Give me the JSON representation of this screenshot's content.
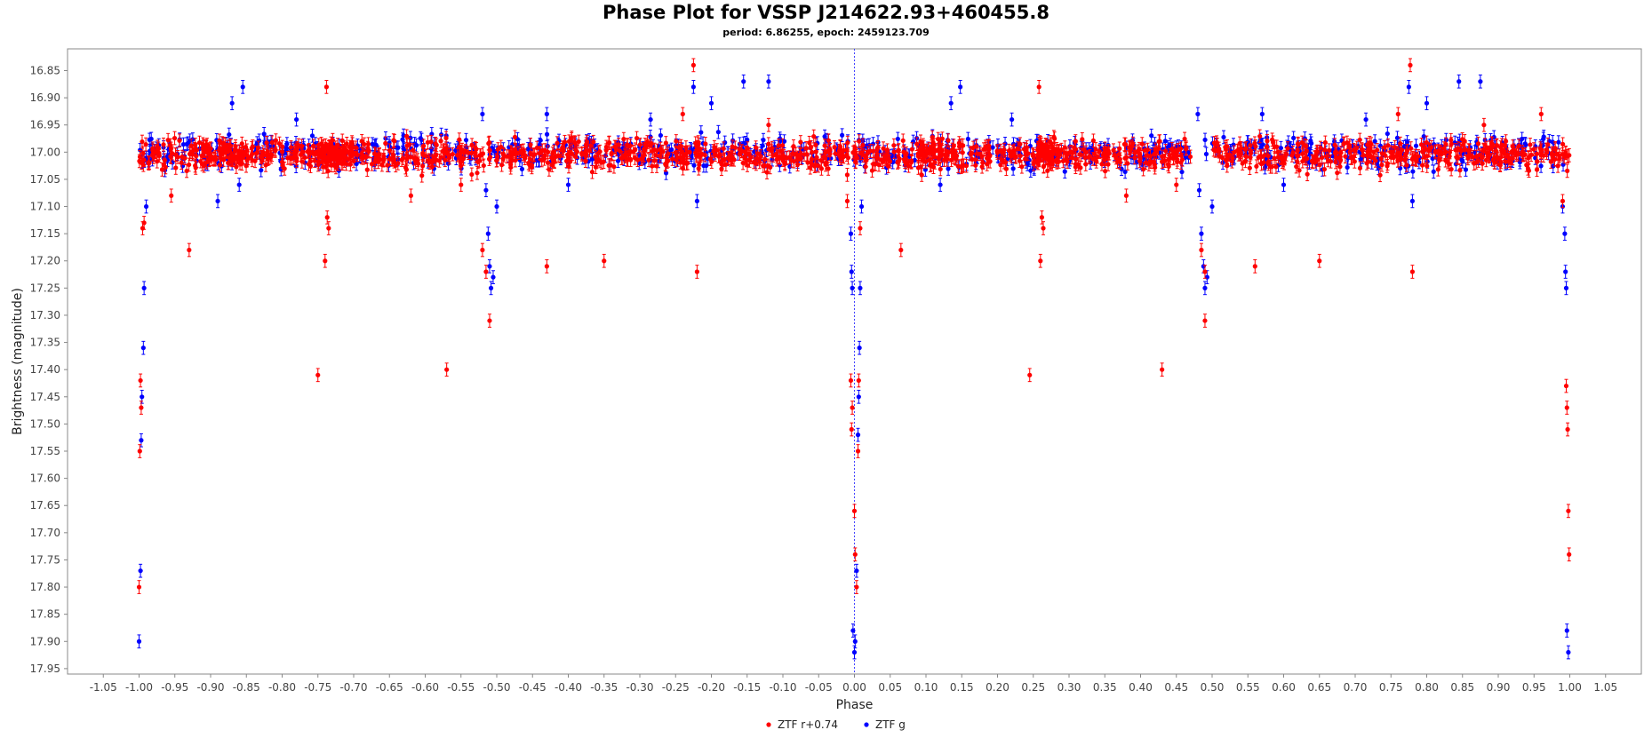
{
  "chart_data": {
    "type": "scatter",
    "title": "Phase Plot for VSSP J214622.93+460455.8",
    "subtitle": "period: 6.86255, epoch: 2459123.709",
    "xlabel": "Phase",
    "ylabel": "Brightness (magnitude)",
    "xlim": [
      -1.1,
      1.1
    ],
    "ylim": [
      17.96,
      16.81
    ],
    "y_inverted": true,
    "x_ticks": [
      -1.05,
      -1.0,
      -0.95,
      -0.9,
      -0.85,
      -0.8,
      -0.75,
      -0.7,
      -0.65,
      -0.6,
      -0.55,
      -0.5,
      -0.45,
      -0.4,
      -0.35,
      -0.3,
      -0.25,
      -0.2,
      -0.15,
      -0.1,
      -0.05,
      0.0,
      0.05,
      0.1,
      0.15,
      0.2,
      0.25,
      0.3,
      0.35,
      0.4,
      0.45,
      0.5,
      0.55,
      0.6,
      0.65,
      0.7,
      0.75,
      0.8,
      0.85,
      0.9,
      0.95,
      1.0,
      1.05
    ],
    "x_tick_labels": [
      "-1.05",
      "-1.00",
      "-0.95",
      "-0.90",
      "-0.85",
      "-0.80",
      "-0.75",
      "-0.70",
      "-0.65",
      "-0.60",
      "-0.55",
      "-0.50",
      "-0.45",
      "-0.40",
      "-0.35",
      "-0.30",
      "-0.25",
      "-0.20",
      "-0.15",
      "-0.10",
      "-0.05",
      "0.00",
      "0.05",
      "0.10",
      "0.15",
      "0.20",
      "0.25",
      "0.30",
      "0.35",
      "0.40",
      "0.45",
      "0.50",
      "0.55",
      "0.60",
      "0.65",
      "0.70",
      "0.75",
      "0.80",
      "0.85",
      "0.90",
      "0.95",
      "1.00",
      "1.05"
    ],
    "y_ticks": [
      16.85,
      16.9,
      16.95,
      17.0,
      17.05,
      17.1,
      17.15,
      17.2,
      17.25,
      17.3,
      17.35,
      17.4,
      17.45,
      17.5,
      17.55,
      17.6,
      17.65,
      17.7,
      17.75,
      17.8,
      17.85,
      17.9,
      17.95
    ],
    "y_tick_labels": [
      "16.85",
      "16.90",
      "16.95",
      "17.00",
      "17.05",
      "17.10",
      "17.15",
      "17.20",
      "17.25",
      "17.30",
      "17.35",
      "17.40",
      "17.45",
      "17.50",
      "17.55",
      "17.60",
      "17.65",
      "17.70",
      "17.75",
      "17.80",
      "17.85",
      "17.90",
      "17.95"
    ],
    "vline_x": 0.0,
    "legend_position": "bottom-center",
    "grid": false,
    "series": [
      {
        "name": "ZTF r+0.74",
        "color": "#ff0000",
        "baseline": 17.005,
        "scatter": 0.045,
        "density_phases": [
          -0.99,
          -0.97,
          -0.95,
          -0.93,
          -0.91,
          -0.9,
          -0.89,
          -0.88,
          -0.87,
          -0.86,
          -0.85,
          -0.83,
          -0.81,
          -0.79,
          -0.77,
          -0.75,
          -0.74,
          -0.735,
          -0.73,
          -0.725,
          -0.72,
          -0.71,
          -0.7,
          -0.68,
          -0.66,
          -0.64,
          -0.62,
          -0.6,
          -0.58,
          -0.56,
          -0.54,
          -0.52,
          -0.49,
          -0.47,
          -0.45,
          -0.43,
          -0.41,
          -0.39,
          -0.37,
          -0.35,
          -0.33,
          -0.31,
          -0.29,
          -0.27,
          -0.25,
          -0.23,
          -0.21,
          -0.19,
          -0.17,
          -0.15,
          -0.13,
          -0.11,
          -0.09,
          -0.07,
          -0.05,
          -0.03,
          -0.01,
          0.01,
          0.03,
          0.05,
          0.07,
          0.09,
          0.1,
          0.11,
          0.12,
          0.13,
          0.15,
          0.17,
          0.19,
          0.21,
          0.23,
          0.25,
          0.26,
          0.265,
          0.27,
          0.275,
          0.28,
          0.3,
          0.32,
          0.34,
          0.36,
          0.38,
          0.4,
          0.42,
          0.44,
          0.46,
          0.51,
          0.53,
          0.55,
          0.57,
          0.59,
          0.61,
          0.63,
          0.65,
          0.67,
          0.69,
          0.71,
          0.73,
          0.75,
          0.77,
          0.79,
          0.81,
          0.83,
          0.85,
          0.87,
          0.89,
          0.9,
          0.91,
          0.93,
          0.95,
          0.97,
          0.99
        ],
        "points": [
          {
            "x": -0.995,
            "y": 17.14
          },
          {
            "x": -0.993,
            "y": 17.13
          },
          {
            "x": -0.998,
            "y": 17.42
          },
          {
            "x": -0.997,
            "y": 17.47
          },
          {
            "x": -0.999,
            "y": 17.55
          },
          {
            "x": -1.0,
            "y": 17.8
          },
          {
            "x": -0.93,
            "y": 17.18
          },
          {
            "x": -0.955,
            "y": 17.08
          },
          {
            "x": -0.75,
            "y": 17.41
          },
          {
            "x": -0.74,
            "y": 17.2
          },
          {
            "x": -0.737,
            "y": 17.12
          },
          {
            "x": -0.735,
            "y": 17.14
          },
          {
            "x": -0.738,
            "y": 16.88
          },
          {
            "x": -0.57,
            "y": 17.4
          },
          {
            "x": -0.52,
            "y": 17.18
          },
          {
            "x": -0.515,
            "y": 17.22
          },
          {
            "x": -0.51,
            "y": 17.31
          },
          {
            "x": -0.43,
            "y": 17.21
          },
          {
            "x": -0.35,
            "y": 17.2
          },
          {
            "x": -0.22,
            "y": 17.22
          },
          {
            "x": -0.225,
            "y": 16.84
          },
          {
            "x": -0.01,
            "y": 17.09
          },
          {
            "x": -0.005,
            "y": 17.42
          },
          {
            "x": -0.003,
            "y": 17.47
          },
          {
            "x": -0.004,
            "y": 17.51
          },
          {
            "x": 0.0,
            "y": 17.66
          },
          {
            "x": 0.001,
            "y": 17.74
          },
          {
            "x": 0.003,
            "y": 17.8
          },
          {
            "x": 0.005,
            "y": 17.55
          },
          {
            "x": 0.006,
            "y": 17.42
          },
          {
            "x": 0.008,
            "y": 17.14
          },
          {
            "x": 0.065,
            "y": 17.18
          },
          {
            "x": 0.245,
            "y": 17.41
          },
          {
            "x": 0.26,
            "y": 17.2
          },
          {
            "x": 0.262,
            "y": 17.12
          },
          {
            "x": 0.264,
            "y": 17.14
          },
          {
            "x": 0.258,
            "y": 16.88
          },
          {
            "x": 0.43,
            "y": 17.4
          },
          {
            "x": 0.485,
            "y": 17.18
          },
          {
            "x": 0.49,
            "y": 17.22
          },
          {
            "x": 0.49,
            "y": 17.31
          },
          {
            "x": 0.56,
            "y": 17.21
          },
          {
            "x": 0.65,
            "y": 17.2
          },
          {
            "x": 0.78,
            "y": 17.22
          },
          {
            "x": 0.777,
            "y": 16.84
          },
          {
            "x": 0.99,
            "y": 17.09
          },
          {
            "x": 0.995,
            "y": 17.43
          },
          {
            "x": 0.996,
            "y": 17.47
          },
          {
            "x": 0.997,
            "y": 17.51
          },
          {
            "x": 0.998,
            "y": 17.66
          },
          {
            "x": 0.999,
            "y": 17.74
          },
          {
            "x": 0.38,
            "y": 17.08
          },
          {
            "x": 0.45,
            "y": 17.06
          },
          {
            "x": -0.62,
            "y": 17.08
          },
          {
            "x": -0.55,
            "y": 17.06
          },
          {
            "x": 0.88,
            "y": 16.95
          },
          {
            "x": 0.76,
            "y": 16.93
          },
          {
            "x": -0.12,
            "y": 16.95
          },
          {
            "x": -0.24,
            "y": 16.93
          },
          {
            "x": 0.96,
            "y": 16.93
          }
        ]
      },
      {
        "name": "ZTF g",
        "color": "#0000ff",
        "baseline": 17.0,
        "scatter": 0.05,
        "density_phases": [
          -0.99,
          -0.98,
          -0.96,
          -0.94,
          -0.92,
          -0.9,
          -0.88,
          -0.86,
          -0.84,
          -0.82,
          -0.8,
          -0.78,
          -0.76,
          -0.74,
          -0.72,
          -0.7,
          -0.68,
          -0.66,
          -0.64,
          -0.62,
          -0.6,
          -0.58,
          -0.56,
          -0.54,
          -0.5,
          -0.48,
          -0.46,
          -0.44,
          -0.42,
          -0.4,
          -0.38,
          -0.36,
          -0.34,
          -0.32,
          -0.3,
          -0.28,
          -0.26,
          -0.24,
          -0.22,
          -0.2,
          -0.18,
          -0.16,
          -0.14,
          -0.12,
          -0.1,
          -0.08,
          -0.06,
          -0.04,
          -0.02,
          0.01,
          0.02,
          0.04,
          0.06,
          0.08,
          0.1,
          0.12,
          0.14,
          0.16,
          0.18,
          0.2,
          0.22,
          0.24,
          0.26,
          0.28,
          0.3,
          0.32,
          0.34,
          0.36,
          0.38,
          0.4,
          0.42,
          0.44,
          0.46,
          0.5,
          0.52,
          0.54,
          0.56,
          0.58,
          0.6,
          0.62,
          0.64,
          0.66,
          0.68,
          0.7,
          0.72,
          0.74,
          0.76,
          0.78,
          0.8,
          0.82,
          0.84,
          0.86,
          0.88,
          0.9,
          0.92,
          0.94,
          0.96,
          0.98
        ],
        "points": [
          {
            "x": -0.99,
            "y": 17.1
          },
          {
            "x": -0.993,
            "y": 17.25
          },
          {
            "x": -0.994,
            "y": 17.36
          },
          {
            "x": -0.996,
            "y": 17.45
          },
          {
            "x": -0.997,
            "y": 17.53
          },
          {
            "x": -0.998,
            "y": 17.77
          },
          {
            "x": -1.0,
            "y": 17.9
          },
          {
            "x": -0.87,
            "y": 16.91
          },
          {
            "x": -0.855,
            "y": 16.88
          },
          {
            "x": -0.89,
            "y": 17.09
          },
          {
            "x": -0.86,
            "y": 17.06
          },
          {
            "x": -0.78,
            "y": 16.94
          },
          {
            "x": -0.52,
            "y": 16.93
          },
          {
            "x": -0.515,
            "y": 17.07
          },
          {
            "x": -0.512,
            "y": 17.15
          },
          {
            "x": -0.51,
            "y": 17.21
          },
          {
            "x": -0.508,
            "y": 17.25
          },
          {
            "x": -0.505,
            "y": 17.23
          },
          {
            "x": -0.5,
            "y": 17.1
          },
          {
            "x": -0.43,
            "y": 16.93
          },
          {
            "x": -0.4,
            "y": 17.06
          },
          {
            "x": -0.285,
            "y": 16.94
          },
          {
            "x": -0.225,
            "y": 16.88
          },
          {
            "x": -0.22,
            "y": 17.09
          },
          {
            "x": -0.2,
            "y": 16.91
          },
          {
            "x": -0.155,
            "y": 16.87
          },
          {
            "x": -0.12,
            "y": 16.87
          },
          {
            "x": -0.005,
            "y": 17.15
          },
          {
            "x": -0.004,
            "y": 17.22
          },
          {
            "x": -0.003,
            "y": 17.25
          },
          {
            "x": -0.002,
            "y": 17.88
          },
          {
            "x": 0.0,
            "y": 17.92
          },
          {
            "x": 0.001,
            "y": 17.9
          },
          {
            "x": 0.003,
            "y": 17.77
          },
          {
            "x": 0.005,
            "y": 17.52
          },
          {
            "x": 0.006,
            "y": 17.45
          },
          {
            "x": 0.007,
            "y": 17.36
          },
          {
            "x": 0.008,
            "y": 17.25
          },
          {
            "x": 0.01,
            "y": 17.1
          },
          {
            "x": 0.135,
            "y": 16.91
          },
          {
            "x": 0.148,
            "y": 16.88
          },
          {
            "x": 0.12,
            "y": 17.06
          },
          {
            "x": 0.22,
            "y": 16.94
          },
          {
            "x": 0.48,
            "y": 16.93
          },
          {
            "x": 0.482,
            "y": 17.07
          },
          {
            "x": 0.485,
            "y": 17.15
          },
          {
            "x": 0.488,
            "y": 17.21
          },
          {
            "x": 0.49,
            "y": 17.25
          },
          {
            "x": 0.493,
            "y": 17.23
          },
          {
            "x": 0.5,
            "y": 17.1
          },
          {
            "x": 0.57,
            "y": 16.93
          },
          {
            "x": 0.6,
            "y": 17.06
          },
          {
            "x": 0.715,
            "y": 16.94
          },
          {
            "x": 0.775,
            "y": 16.88
          },
          {
            "x": 0.78,
            "y": 17.09
          },
          {
            "x": 0.8,
            "y": 16.91
          },
          {
            "x": 0.845,
            "y": 16.87
          },
          {
            "x": 0.875,
            "y": 16.87
          },
          {
            "x": 0.99,
            "y": 17.1
          },
          {
            "x": 0.993,
            "y": 17.15
          },
          {
            "x": 0.994,
            "y": 17.22
          },
          {
            "x": 0.995,
            "y": 17.25
          },
          {
            "x": 0.996,
            "y": 17.88
          },
          {
            "x": 0.998,
            "y": 17.92
          }
        ]
      }
    ]
  }
}
